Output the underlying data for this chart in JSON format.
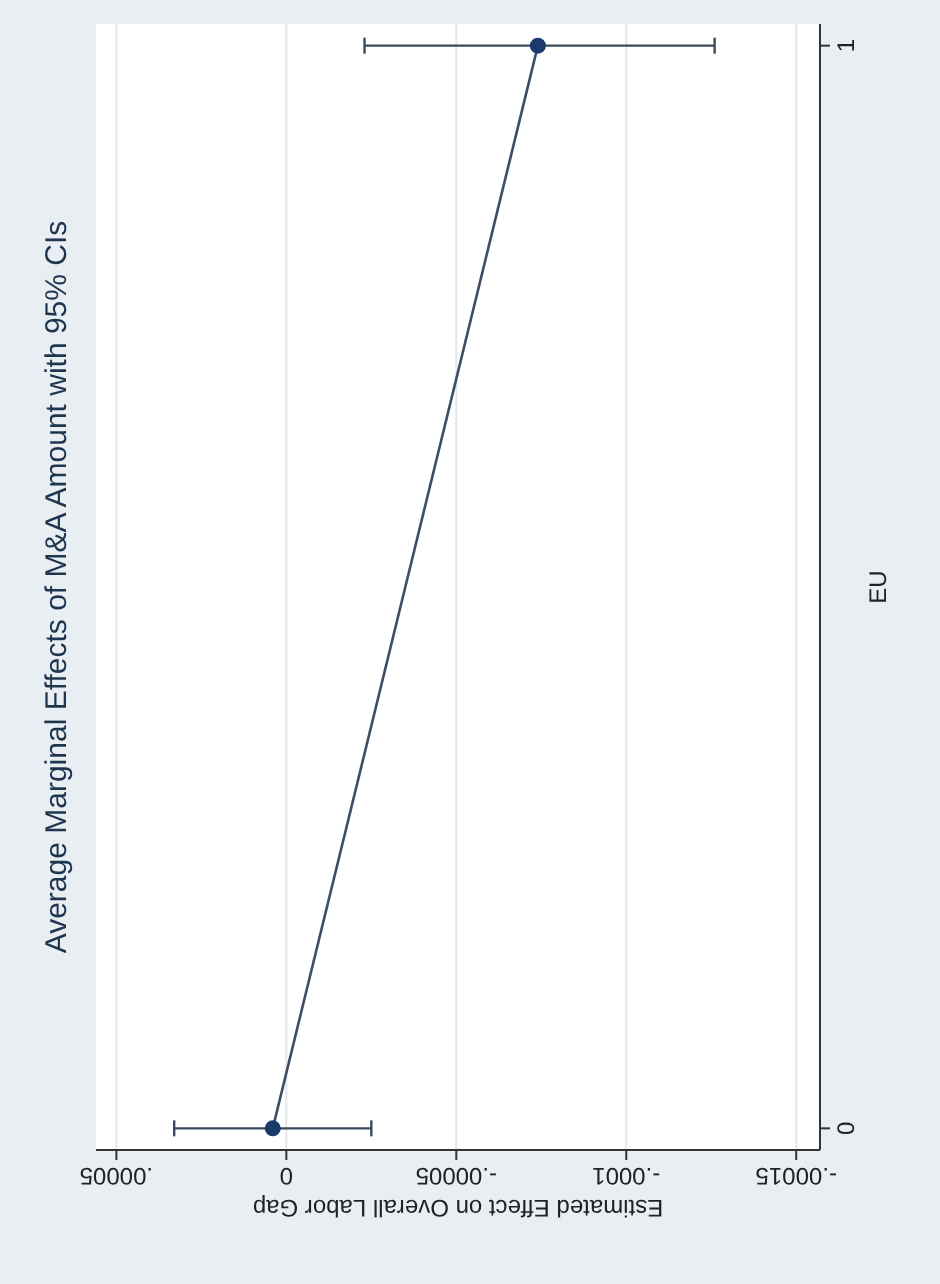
{
  "chart_data": {
    "type": "line",
    "title": "Average Marginal Effects of M&A Amount with 95% CIs",
    "xlabel": "Estimated Effect on Overall Labor Gap",
    "ylabel": "EU",
    "xlim": [
      5.6e-05,
      -0.000157
    ],
    "xticks": [
      {
        "value": 5e-05,
        "label": ".00005"
      },
      0,
      {
        "value": -5e-05,
        "label": "-.00005"
      },
      {
        "value": -0.0001,
        "label": "-.0001"
      },
      {
        "value": -0.00015,
        "label": "-.00015"
      }
    ],
    "ylim": [
      -0.02,
      1.02
    ],
    "yticks": [
      0,
      1
    ],
    "series": [
      {
        "color": "#1a3a6b",
        "x": [
          4e-06,
          -7.4e-05
        ],
        "values": [
          0,
          1
        ],
        "xerrors": [
          [
            -2.5e-05,
            3.3e-05
          ],
          [
            -0.000126,
            -2.3e-05
          ]
        ]
      }
    ],
    "grid": "x",
    "marker": "circle",
    "line_style": "solid"
  }
}
